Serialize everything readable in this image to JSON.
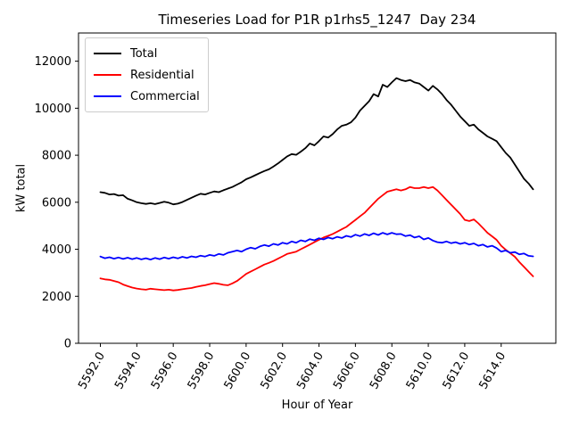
{
  "chart_data": {
    "type": "line",
    "title": "Timeseries Load for P1R p1rhs5_1247  Day 234",
    "xlabel": "Hour of Year",
    "ylabel": "kW total",
    "xlim": [
      5590.8,
      5617.0
    ],
    "ylim": [
      0,
      13200
    ],
    "grid": false,
    "x_ticks": [
      5592.0,
      5594.0,
      5596.0,
      5598.0,
      5600.0,
      5602.0,
      5604.0,
      5606.0,
      5608.0,
      5610.0,
      5612.0,
      5614.0
    ],
    "x_tick_labels": [
      "5592.0",
      "5594.0",
      "5596.0",
      "5598.0",
      "5600.0",
      "5602.0",
      "5604.0",
      "5606.0",
      "5608.0",
      "5610.0",
      "5612.0",
      "5614.0"
    ],
    "y_ticks": [
      0,
      2000,
      4000,
      6000,
      8000,
      10000,
      12000
    ],
    "y_tick_labels": [
      "0",
      "2000",
      "4000",
      "6000",
      "8000",
      "10000",
      "12000"
    ],
    "x_start": 5592.0,
    "x_step": 0.25,
    "legend": {
      "position": "upper left",
      "entries": [
        "Total",
        "Residential",
        "Commercial"
      ]
    },
    "series": [
      {
        "name": "Total",
        "color": "#000000",
        "values": [
          6430,
          6400,
          6330,
          6350,
          6280,
          6300,
          6150,
          6080,
          6000,
          5960,
          5930,
          5960,
          5920,
          5970,
          6020,
          5980,
          5910,
          5940,
          6010,
          6100,
          6190,
          6280,
          6360,
          6330,
          6400,
          6460,
          6430,
          6510,
          6580,
          6650,
          6750,
          6850,
          6980,
          7060,
          7150,
          7240,
          7330,
          7400,
          7520,
          7650,
          7800,
          7950,
          8050,
          8020,
          8150,
          8300,
          8500,
          8420,
          8600,
          8800,
          8750,
          8900,
          9100,
          9250,
          9300,
          9400,
          9600,
          9900,
          10100,
          10300,
          10600,
          10500,
          11000,
          10900,
          11100,
          11280,
          11200,
          11150,
          11200,
          11100,
          11050,
          10900,
          10750,
          10950,
          10800,
          10600,
          10350,
          10150,
          9900,
          9650,
          9450,
          9250,
          9300,
          9100,
          8950,
          8800,
          8700,
          8600,
          8350,
          8100,
          7900,
          7600,
          7300,
          7000,
          6800,
          6550
        ]
      },
      {
        "name": "Residential",
        "color": "#ff0000",
        "values": [
          2760,
          2720,
          2700,
          2650,
          2600,
          2500,
          2430,
          2370,
          2330,
          2300,
          2280,
          2320,
          2300,
          2280,
          2260,
          2280,
          2250,
          2270,
          2300,
          2330,
          2350,
          2400,
          2440,
          2470,
          2520,
          2560,
          2530,
          2490,
          2470,
          2550,
          2650,
          2800,
          2950,
          3050,
          3150,
          3250,
          3350,
          3420,
          3500,
          3600,
          3700,
          3800,
          3850,
          3900,
          4000,
          4100,
          4200,
          4300,
          4400,
          4500,
          4570,
          4650,
          4750,
          4850,
          4950,
          5100,
          5250,
          5400,
          5550,
          5750,
          5950,
          6150,
          6300,
          6450,
          6500,
          6550,
          6500,
          6550,
          6650,
          6600,
          6600,
          6650,
          6600,
          6650,
          6500,
          6300,
          6100,
          5900,
          5700,
          5500,
          5250,
          5200,
          5270,
          5100,
          4900,
          4700,
          4550,
          4400,
          4150,
          3980,
          3830,
          3680,
          3450,
          3250,
          3050,
          2850
        ]
      },
      {
        "name": "Commercial",
        "color": "#0000ff",
        "values": [
          3690,
          3620,
          3660,
          3600,
          3650,
          3590,
          3640,
          3580,
          3630,
          3570,
          3620,
          3560,
          3630,
          3580,
          3650,
          3600,
          3660,
          3610,
          3680,
          3630,
          3700,
          3660,
          3730,
          3690,
          3760,
          3720,
          3800,
          3760,
          3850,
          3900,
          3950,
          3900,
          4000,
          4070,
          4020,
          4120,
          4180,
          4130,
          4230,
          4180,
          4280,
          4230,
          4330,
          4280,
          4380,
          4330,
          4430,
          4380,
          4470,
          4420,
          4500,
          4450,
          4530,
          4480,
          4570,
          4520,
          4620,
          4560,
          4650,
          4590,
          4680,
          4610,
          4700,
          4630,
          4700,
          4640,
          4650,
          4560,
          4600,
          4500,
          4550,
          4420,
          4480,
          4370,
          4300,
          4280,
          4330,
          4260,
          4300,
          4230,
          4280,
          4200,
          4250,
          4150,
          4200,
          4100,
          4150,
          4050,
          3900,
          3950,
          3850,
          3880,
          3780,
          3820,
          3720,
          3700
        ]
      }
    ]
  }
}
